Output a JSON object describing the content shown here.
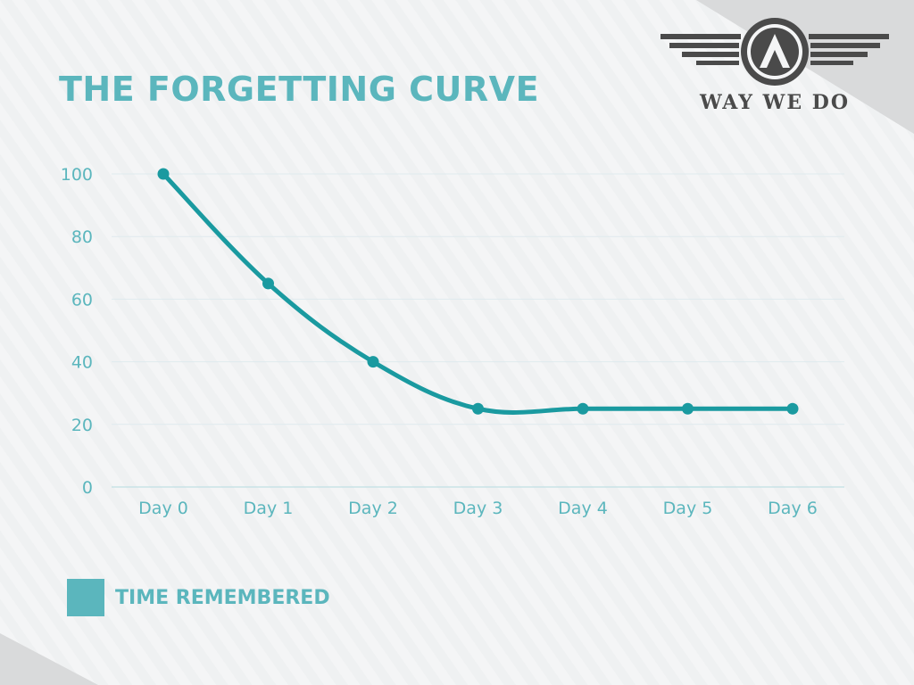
{
  "title": "THE FORGETTING CURVE",
  "logo": {
    "text": "WAY WE DO",
    "icon": "winged-a-emblem-icon"
  },
  "colors": {
    "accent": "#5bb6bd",
    "line": "#1a9aa0",
    "axis_text": "#5bb6bd",
    "grid": "#dfeaee",
    "logo": "#4a4a4a",
    "legend_swatch": "#5bb6bd"
  },
  "chart_data": {
    "type": "line",
    "categories": [
      "Day 0",
      "Day 1",
      "Day 2",
      "Day 3",
      "Day 4",
      "Day 5",
      "Day 6"
    ],
    "series": [
      {
        "name": "TIME REMEMBERED",
        "values": [
          100,
          65,
          40,
          25,
          25,
          25,
          25
        ]
      }
    ],
    "yticks": [
      0,
      20,
      40,
      60,
      80,
      100
    ],
    "ylim": [
      0,
      100
    ],
    "grid": true,
    "legend_position": "bottom-left"
  }
}
